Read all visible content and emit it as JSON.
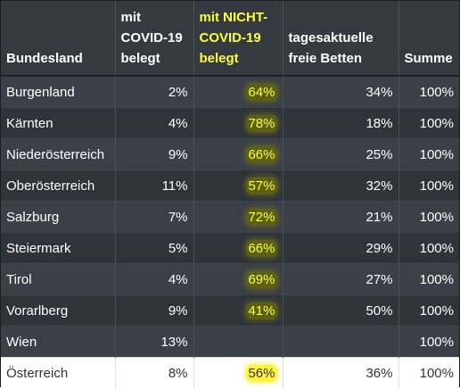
{
  "table": {
    "headers": [
      {
        "label": "Bundesland",
        "highlight": false
      },
      {
        "label": "mit COVID-19 belegt",
        "highlight": false
      },
      {
        "label": "mit NICHT-COVID-19 belegt",
        "highlight": true
      },
      {
        "label": "tagesaktuelle freie Betten",
        "highlight": false
      },
      {
        "label": "Summe",
        "highlight": false
      }
    ],
    "rows": [
      {
        "name": "Burgenland",
        "covid": "2%",
        "noncovid": "64%",
        "free": "34%",
        "sum": "100%"
      },
      {
        "name": "Kärnten",
        "covid": "4%",
        "noncovid": "78%",
        "free": "18%",
        "sum": "100%"
      },
      {
        "name": "Niederösterreich",
        "covid": "9%",
        "noncovid": "66%",
        "free": "25%",
        "sum": "100%"
      },
      {
        "name": "Oberösterreich",
        "covid": "11%",
        "noncovid": "57%",
        "free": "32%",
        "sum": "100%"
      },
      {
        "name": "Salzburg",
        "covid": "7%",
        "noncovid": "72%",
        "free": "21%",
        "sum": "100%"
      },
      {
        "name": "Steiermark",
        "covid": "5%",
        "noncovid": "66%",
        "free": "29%",
        "sum": "100%"
      },
      {
        "name": "Tirol",
        "covid": "4%",
        "noncovid": "69%",
        "free": "27%",
        "sum": "100%"
      },
      {
        "name": "Vorarlberg",
        "covid": "9%",
        "noncovid": "41%",
        "free": "50%",
        "sum": "100%"
      },
      {
        "name": "Wien",
        "covid": "13%",
        "noncovid": "",
        "free": "",
        "sum": "100%"
      }
    ],
    "total": {
      "name": "Österreich",
      "covid": "8%",
      "noncovid": "56%",
      "free": "36%",
      "sum": "100%"
    }
  },
  "colors": {
    "header_bg": "#343a40",
    "row_bg_odd": "#3a4047",
    "row_bg_even": "#2f343a",
    "highlight_text": "#ffff3a",
    "highlight_marker_dark": "#5b5f17",
    "highlight_marker_light": "#fff43a",
    "total_row_bg": "#ffffff"
  }
}
